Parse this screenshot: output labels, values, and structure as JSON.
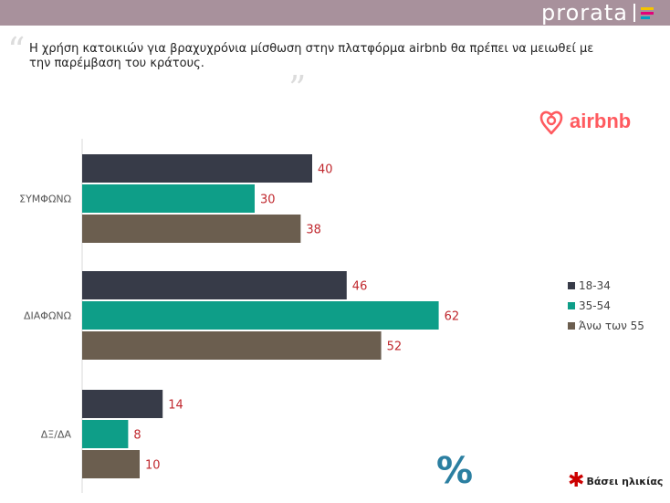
{
  "header": {
    "brand": "prorata"
  },
  "question": {
    "text": "Η χρήση κατοικιών για βραχυχρόνια μίσθωση στην πλατφόρμα airbnb θα πρέπει να μειωθεί με την παρέμβαση του κράτους."
  },
  "logo": {
    "text": "airbnb"
  },
  "chart_data": {
    "type": "bar",
    "orientation": "horizontal",
    "categories": [
      "ΣΥΜΦΩΝΩ",
      "ΔΙΑΦΩΝΩ",
      "ΔΞ/ΔΑ"
    ],
    "series": [
      {
        "name": "18-34",
        "values": [
          40,
          46,
          14
        ],
        "color": "#373b48"
      },
      {
        "name": "35-54",
        "values": [
          30,
          62,
          8
        ],
        "color": "#0e9e88"
      },
      {
        "name": "Άνω των 55",
        "values": [
          38,
          52,
          10
        ],
        "color": "#6b5e4f"
      }
    ],
    "xlim": [
      0,
      65
    ],
    "data_label_color": "#c0282e",
    "legend_position": "right",
    "grid": false
  },
  "footer": {
    "unit_symbol": "%",
    "note": "Βάσει ηλικίας"
  }
}
